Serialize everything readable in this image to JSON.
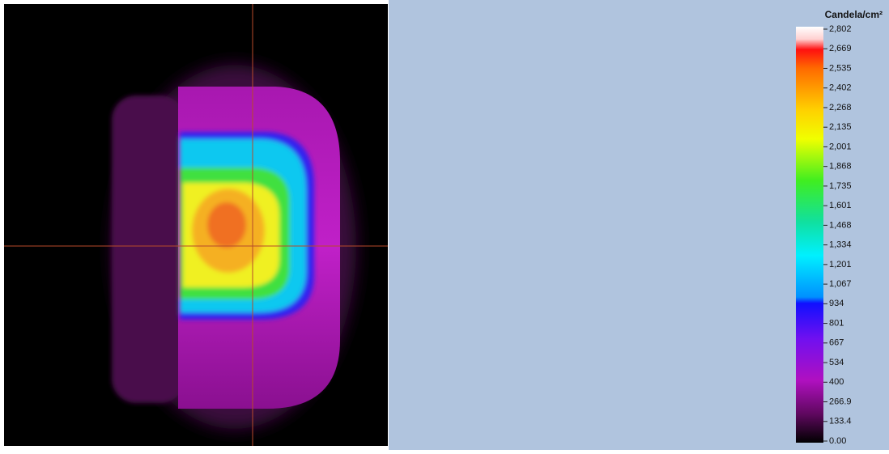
{
  "colorbar": {
    "title": "Candela/cm²",
    "ticks": [
      "2,802",
      "2,669",
      "2,535",
      "2,402",
      "2,268",
      "2,135",
      "2,001",
      "1,868",
      "1,735",
      "1,601",
      "1,468",
      "1,334",
      "1,201",
      "1,067",
      "934",
      "801",
      "667",
      "534",
      "400",
      "266.9",
      "133.4",
      "0.00"
    ]
  }
}
